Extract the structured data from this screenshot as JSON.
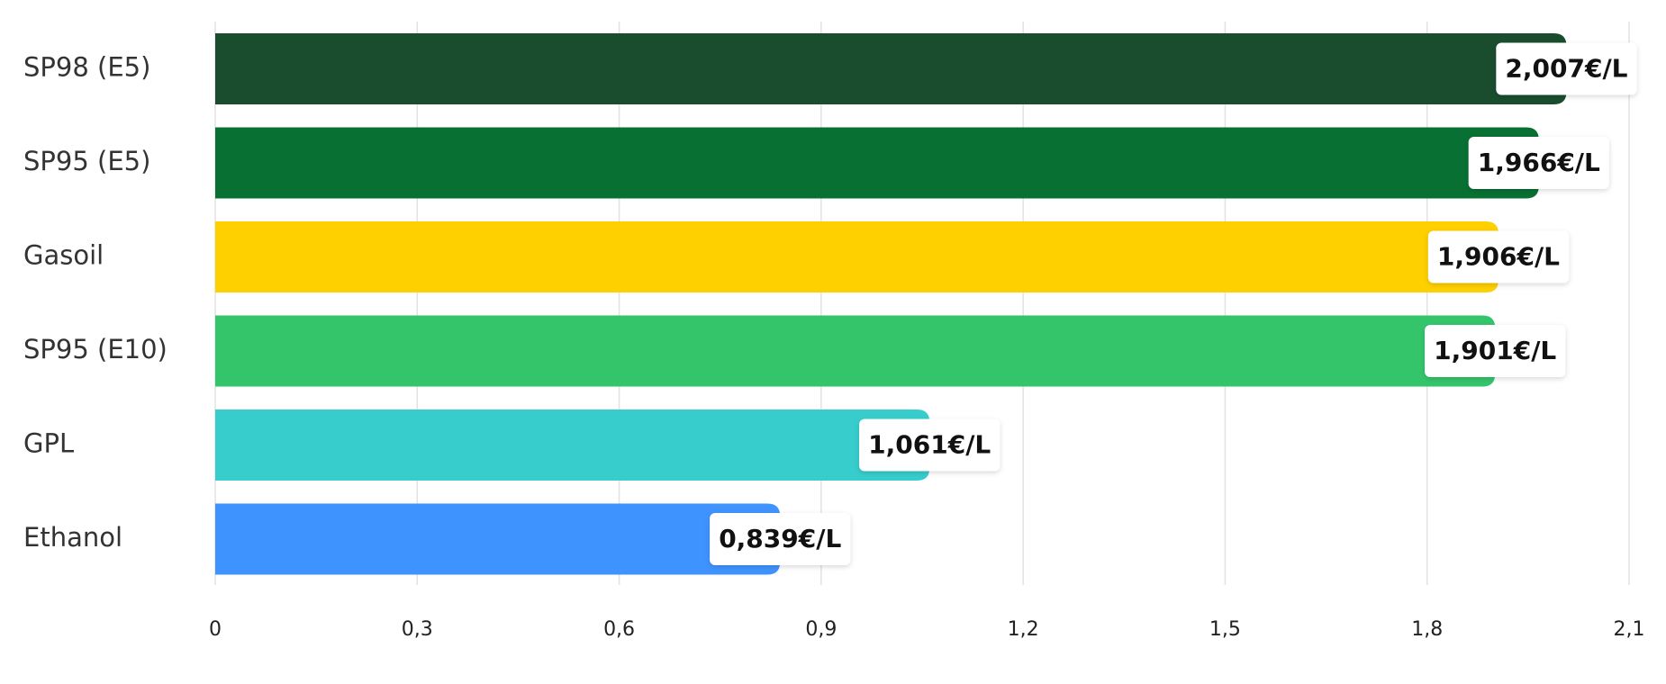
{
  "chart_data": {
    "type": "bar",
    "orientation": "horizontal",
    "categories": [
      "SP98 (E5)",
      "SP95 (E5)",
      "Gasoil",
      "SP95 (E10)",
      "GPL",
      "Ethanol"
    ],
    "values": [
      2.007,
      1.966,
      1.906,
      1.901,
      1.061,
      0.839
    ],
    "value_labels": [
      "2,007€/L",
      "1,966€/L",
      "1,906€/L",
      "1,901€/L",
      "1,061€/L",
      "0,839€/L"
    ],
    "colors": [
      "#1a4d2e",
      "#087033",
      "#ffd000",
      "#34c56b",
      "#37cdcd",
      "#3f93ff"
    ],
    "xlim": [
      0,
      2.1
    ],
    "xticks": [
      0,
      {
        "value": 0.3,
        "label": "0,3"
      },
      {
        "value": 0.6,
        "label": "0,6"
      },
      {
        "value": 0.9,
        "label": "0,9"
      },
      {
        "value": 1.2,
        "label": "1,2"
      },
      {
        "value": 1.5,
        "label": "1,5"
      },
      {
        "value": 1.8,
        "label": "1,8"
      },
      {
        "value": 2.1,
        "label": "2,1"
      }
    ],
    "grid": true
  }
}
